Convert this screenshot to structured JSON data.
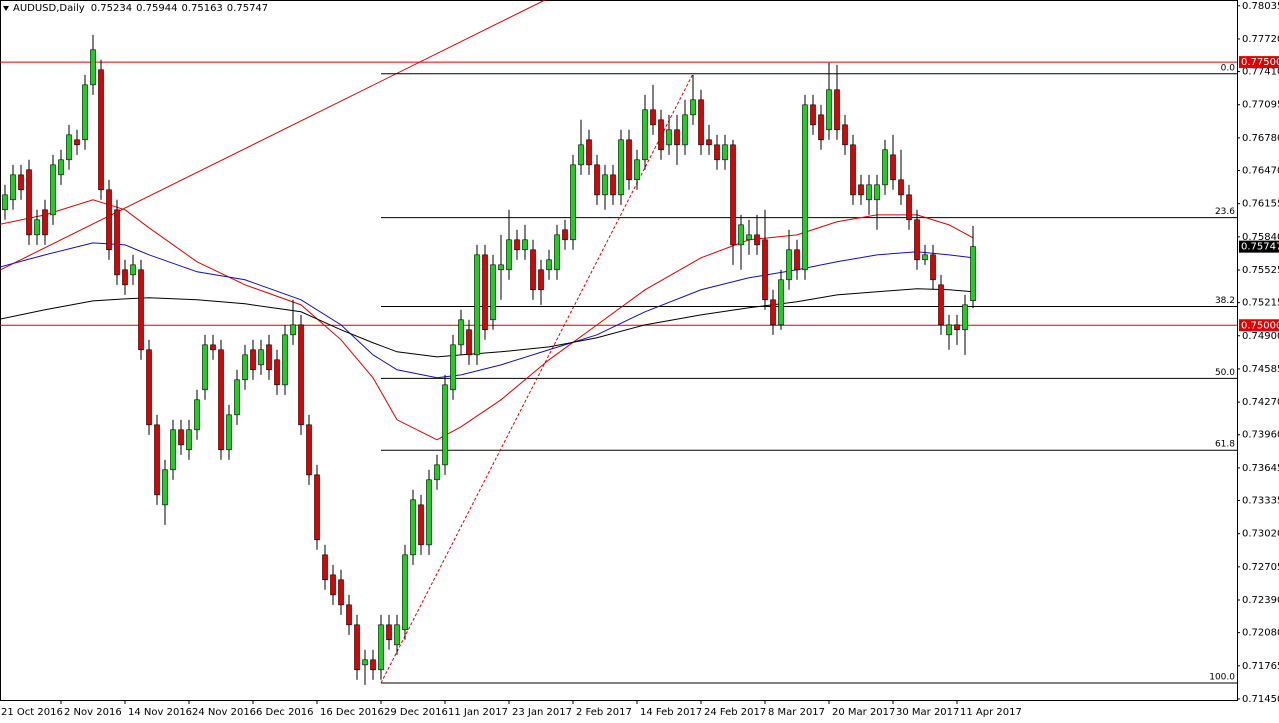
{
  "chart_data": {
    "type": "candlestick",
    "title": "AUDUSD,Daily",
    "up_color": "#1fcf1f",
    "down_color": "#e00000",
    "wick_color": "#000000",
    "categories": [
      "21 Oct 2016",
      null,
      null,
      null,
      null,
      null,
      null,
      null,
      "2 Nov 2016",
      null,
      null,
      null,
      null,
      null,
      null,
      null,
      "14 Nov 2016",
      null,
      null,
      null,
      null,
      null,
      null,
      null,
      "24 Nov 2016",
      null,
      null,
      null,
      null,
      null,
      null,
      null,
      "6 Dec 2016",
      null,
      null,
      null,
      null,
      null,
      null,
      null,
      "16 Dec 2016",
      null,
      null,
      null,
      null,
      null,
      null,
      null,
      "29 Dec 2016",
      null,
      null,
      null,
      null,
      null,
      null,
      null,
      "11 Jan 2017",
      null,
      null,
      null,
      null,
      null,
      null,
      null,
      "23 Jan 2017",
      null,
      null,
      null,
      null,
      null,
      null,
      null,
      "2 Feb 2017",
      null,
      null,
      null,
      null,
      null,
      null,
      null,
      "14 Feb 2017",
      null,
      null,
      null,
      null,
      null,
      null,
      null,
      "24 Feb 2017",
      null,
      null,
      null,
      null,
      null,
      null,
      null,
      "8 Mar 2017",
      null,
      null,
      null,
      null,
      null,
      null,
      null,
      "20 Mar 2017",
      null,
      null,
      null,
      null,
      null,
      null,
      null,
      "30 Mar 2017",
      null,
      null,
      null,
      null,
      null,
      null,
      null,
      "11 Apr 2017",
      null,
      null
    ],
    "open": [
      0.76049,
      0.76097,
      0.76192,
      0.76429,
      0.76477,
      0.75859,
      0.76097,
      0.76049,
      0.76429,
      0.76572,
      0.76762,
      0.76762,
      0.77284,
      0.77427,
      0.76287,
      0.76097,
      0.75527,
      0.75479,
      0.75527,
      0.74767,
      0.74054,
      0.73294,
      0.73627,
      0.74007,
      0.73817,
      0.74007,
      0.74387,
      0.74814,
      0.74767,
      0.73817,
      0.74149,
      0.74482,
      0.74767,
      0.74624,
      0.74814,
      0.74672,
      0.74434,
      0.74909,
      0.75004,
      0.74054,
      0.73579,
      0.72819,
      0.72629,
      0.72582,
      0.72344,
      0.72154,
      0.71774,
      0.71822,
      0.71727,
      0.72154,
      0.71964,
      0.72107,
      0.72819,
      0.73294,
      0.72914,
      0.73532,
      0.73674,
      0.74387,
      0.74814,
      0.74957,
      0.74719,
      0.75669,
      0.75052,
      0.75527,
      0.75527,
      0.75812,
      0.75717,
      0.75717,
      0.75527,
      0.75527,
      0.75527,
      0.75907,
      0.75812,
      0.76524,
      0.76762,
      0.76524,
      0.76239,
      0.76429,
      0.76239,
      0.76762,
      0.76382,
      0.76572,
      0.77047,
      0.76952,
      0.76714,
      0.76857,
      0.76714,
      0.76999,
      0.77142,
      0.76762,
      0.76714,
      0.76572,
      0.76714,
      0.75764,
      0.75812,
      0.75859,
      0.75812,
      0.75242,
      0.75004,
      0.75432,
      0.75717,
      0.75527,
      0.77094,
      0.76999,
      0.76857,
      0.77237,
      0.76904,
      0.76714,
      0.76334,
      0.76192,
      0.76192,
      0.76334,
      0.76619,
      0.76382,
      0.76239,
      0.76002,
      0.75622,
      0.75669,
      0.75384,
      0.74909,
      0.75004,
      0.74957,
      0.75234
    ],
    "high": [
      0.76287,
      0.76334,
      0.76524,
      0.76524,
      0.76572,
      0.76097,
      0.76192,
      0.76619,
      0.76667,
      0.76904,
      0.76857,
      0.77379,
      0.77759,
      0.77522,
      0.76382,
      0.76192,
      0.75622,
      0.75669,
      0.75622,
      0.74862,
      0.74149,
      0.73722,
      0.74102,
      0.74102,
      0.74102,
      0.74387,
      0.74909,
      0.74909,
      0.74862,
      0.74244,
      0.74577,
      0.74814,
      0.74862,
      0.74862,
      0.74909,
      0.74767,
      0.75004,
      0.75242,
      0.75099,
      0.74149,
      0.73674,
      0.72914,
      0.72724,
      0.72677,
      0.72439,
      0.72249,
      0.71917,
      0.71917,
      0.72249,
      0.72249,
      0.72249,
      0.72914,
      0.73437,
      0.73389,
      0.73627,
      0.73769,
      0.74529,
      0.74909,
      0.75147,
      0.75052,
      0.75764,
      0.75764,
      0.75669,
      0.75859,
      0.76097,
      0.75907,
      0.75954,
      0.75812,
      0.75622,
      0.75717,
      0.75954,
      0.76002,
      0.76619,
      0.76952,
      0.76857,
      0.76619,
      0.76524,
      0.76524,
      0.76857,
      0.76857,
      0.76667,
      0.77189,
      0.77284,
      0.77047,
      0.76999,
      0.76999,
      0.77142,
      0.77379,
      0.77237,
      0.76904,
      0.76809,
      0.76809,
      0.76762,
      0.76049,
      0.76002,
      0.76049,
      0.76097,
      0.75337,
      0.75527,
      0.75907,
      0.75812,
      0.77189,
      0.77189,
      0.77094,
      0.77494,
      0.77474,
      0.76999,
      0.76809,
      0.76429,
      0.76429,
      0.76429,
      0.76762,
      0.76809,
      0.76667,
      0.76334,
      0.76097,
      0.75764,
      0.75764,
      0.75479,
      0.75099,
      0.75099,
      0.75289,
      0.75944
    ],
    "low": [
      0.75954,
      0.76002,
      0.76097,
      0.76192,
      0.75764,
      0.75764,
      0.75764,
      0.75954,
      0.76334,
      0.76477,
      0.76619,
      0.76667,
      0.77189,
      0.76192,
      0.75622,
      0.75384,
      0.75289,
      0.75384,
      0.74672,
      0.73959,
      0.73294,
      0.73104,
      0.73532,
      0.73769,
      0.73722,
      0.73912,
      0.74292,
      0.74672,
      0.73722,
      0.73722,
      0.74054,
      0.74387,
      0.74482,
      0.74529,
      0.74482,
      0.74339,
      0.74339,
      0.74814,
      0.73959,
      0.73484,
      0.72867,
      0.72487,
      0.72344,
      0.72249,
      0.72059,
      0.71632,
      0.71584,
      0.71632,
      0.71632,
      0.71917,
      0.71869,
      0.72012,
      0.72724,
      0.72819,
      0.72819,
      0.73437,
      0.73579,
      0.74292,
      0.74719,
      0.74624,
      0.74624,
      0.74862,
      0.74957,
      0.75242,
      0.75432,
      0.75622,
      0.75622,
      0.75242,
      0.75194,
      0.75432,
      0.75432,
      0.75717,
      0.75717,
      0.76429,
      0.76429,
      0.76144,
      0.76097,
      0.76144,
      0.76144,
      0.76287,
      0.76287,
      0.76477,
      0.76809,
      0.76572,
      0.76619,
      0.76524,
      0.76619,
      0.76904,
      0.76619,
      0.76619,
      0.76477,
      0.76477,
      0.75574,
      0.75527,
      0.75669,
      0.75669,
      0.75147,
      0.74909,
      0.74957,
      0.75337,
      0.75432,
      0.75432,
      0.76809,
      0.76667,
      0.76762,
      0.76762,
      0.76619,
      0.76144,
      0.76144,
      0.76049,
      0.75907,
      0.76239,
      0.76287,
      0.76144,
      0.75907,
      0.75527,
      0.75574,
      0.75337,
      0.74909,
      0.74767,
      0.74814,
      0.74719,
      0.75163
    ],
    "close": [
      0.76192,
      0.76239,
      0.76429,
      0.76287,
      0.75859,
      0.76002,
      0.75859,
      0.76524,
      0.76572,
      0.76809,
      0.76714,
      0.77284,
      0.77617,
      0.76287,
      0.75717,
      0.75479,
      0.75384,
      0.75574,
      0.74767,
      0.74054,
      0.73389,
      0.73627,
      0.74007,
      0.73864,
      0.74007,
      0.74292,
      0.74814,
      0.74767,
      0.73817,
      0.74149,
      0.74482,
      0.74719,
      0.74577,
      0.74767,
      0.74577,
      0.74434,
      0.74909,
      0.75004,
      0.74054,
      0.73579,
      0.72962,
      0.72582,
      0.72439,
      0.72344,
      0.72154,
      0.71727,
      0.71822,
      0.71727,
      0.72154,
      0.72012,
      0.72154,
      0.72819,
      0.73342,
      0.72914,
      0.73532,
      0.73674,
      0.74434,
      0.74814,
      0.75052,
      0.74719,
      0.75669,
      0.74957,
      0.75574,
      0.75574,
      0.75812,
      0.75717,
      0.75812,
      0.75337,
      0.75337,
      0.75622,
      0.75859,
      0.75812,
      0.76524,
      0.76714,
      0.76524,
      0.76239,
      0.76429,
      0.76239,
      0.76762,
      0.76382,
      0.76572,
      0.77047,
      0.76904,
      0.76667,
      0.76857,
      0.76714,
      0.76999,
      0.77142,
      0.76714,
      0.76714,
      0.76572,
      0.76714,
      0.75764,
      0.75954,
      0.75859,
      0.75764,
      0.75242,
      0.75004,
      0.75432,
      0.75717,
      0.75527,
      0.77094,
      0.76904,
      0.76762,
      0.77237,
      0.76857,
      0.76714,
      0.76239,
      0.76239,
      0.76334,
      0.76334,
      0.76667,
      0.76382,
      0.76239,
      0.76002,
      0.75622,
      0.75669,
      0.75432,
      0.75004,
      0.75004,
      0.74957,
      0.75194,
      0.75747
    ],
    "lines": [
      {
        "color": "#e00000",
        "x": [
          0,
          6,
          12,
          16,
          19,
          25,
          31,
          38,
          43,
          47,
          50,
          55,
          58,
          63,
          69,
          75,
          81,
          88,
          94,
          100,
          105,
          110,
          115,
          119,
          122
        ],
        "values": [
          0.75954,
          0.76049,
          0.76192,
          0.76097,
          0.75926,
          0.75603,
          0.75384,
          0.75194,
          0.74862,
          0.74501,
          0.74102,
          0.73912,
          0.74035,
          0.74292,
          0.74672,
          0.75004,
          0.75337,
          0.75641,
          0.75812,
          0.75859,
          0.75983,
          0.76049,
          0.76049,
          0.75954,
          0.75831
        ]
      },
      {
        "color": "#1010c0",
        "x": [
          0,
          6,
          12,
          16,
          19,
          25,
          31,
          38,
          43,
          47,
          50,
          55,
          58,
          63,
          69,
          75,
          81,
          88,
          94,
          100,
          105,
          110,
          115,
          119,
          122
        ],
        "values": [
          0.75546,
          0.75669,
          0.75783,
          0.75764,
          0.75669,
          0.75508,
          0.75432,
          0.75242,
          0.75004,
          0.74719,
          0.74577,
          0.74501,
          0.74529,
          0.74624,
          0.74767,
          0.74909,
          0.75128,
          0.75337,
          0.75451,
          0.75527,
          0.75603,
          0.75669,
          0.75698,
          0.75669,
          0.75641
        ]
      },
      {
        "color": "#000000",
        "x": [
          0,
          6,
          12,
          16,
          19,
          25,
          31,
          38,
          43,
          47,
          50,
          55,
          58,
          63,
          69,
          75,
          81,
          88,
          94,
          100,
          105,
          110,
          115,
          119,
          122
        ],
        "values": [
          0.75052,
          0.75147,
          0.75232,
          0.75251,
          0.75261,
          0.75242,
          0.75204,
          0.75128,
          0.74957,
          0.74834,
          0.74748,
          0.747,
          0.74719,
          0.74748,
          0.74795,
          0.74881,
          0.75004,
          0.75099,
          0.75166,
          0.75223,
          0.75289,
          0.75318,
          0.75347,
          0.75337,
          0.75318
        ]
      }
    ],
    "hlines": [
      {
        "value": 0.775,
        "label": "0.77500"
      },
      {
        "value": 0.75,
        "label": "0.75000"
      }
    ],
    "hline_color": "#e00000",
    "fibo": {
      "from": 48,
      "to": 87,
      "color": "#e00000",
      "levels": [
        {
          "value": 0,
          "label": "0.0",
          "price": 0.77389
        },
        23.6,
        38.2,
        {
          "value": 50,
          "label": "50.0",
          "price": 0.74496
        },
        61.8,
        {
          "value": 100,
          "label": "100.0",
          "price": 0.71602
        }
      ],
      "prices": [
        0.77389,
        0.76023,
        0.75178,
        0.74496,
        0.73813,
        0.71602
      ]
    },
    "ylim": [
      0.7144,
      0.7809
    ],
    "yticks": [
      0.78035,
      {
        "value": 0.7772,
        "label": "0.77720"
      },
      {
        "value": 0.7741,
        "label": "0.77410"
      },
      0.77095,
      {
        "value": 0.7678,
        "label": "0.76780"
      },
      {
        "value": 0.7647,
        "label": "0.76470"
      },
      0.76155,
      {
        "value": 0.7584,
        "label": "0.75840"
      },
      0.75525,
      0.75215,
      {
        "value": 0.749,
        "label": "0.74900"
      },
      0.74585,
      {
        "value": 0.7427,
        "label": "0.74270"
      },
      {
        "value": 0.7396,
        "label": "0.73960"
      },
      0.73645,
      0.73335,
      {
        "value": 0.7302,
        "label": "0.73020"
      },
      0.72705,
      {
        "value": 0.7239,
        "label": "0.72390"
      },
      {
        "value": 0.7208,
        "label": "0.72080"
      },
      0.71765,
      {
        "value": 0.7145,
        "label": "0.71450"
      }
    ]
  }
}
